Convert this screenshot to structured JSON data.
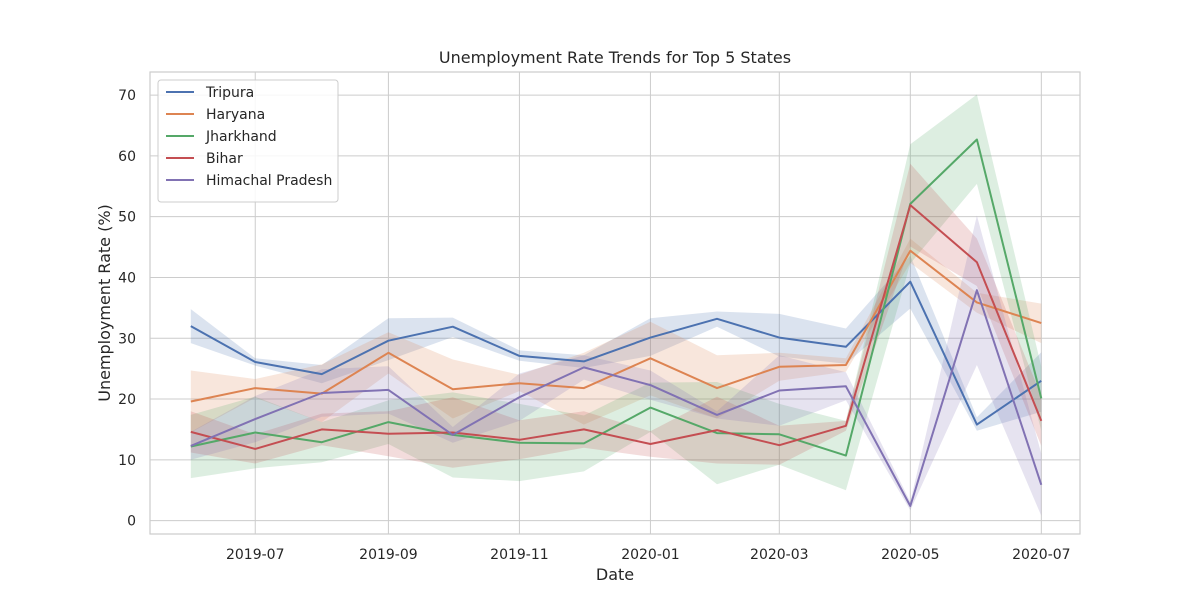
{
  "chart_data": {
    "type": "line",
    "title": "Unemployment Rate Trends for Top 5 States",
    "xlabel": "Date",
    "ylabel": "Unemployment Rate (%)",
    "x": [
      "2019-06",
      "2019-07",
      "2019-08",
      "2019-09",
      "2019-10",
      "2019-11",
      "2019-12",
      "2020-01",
      "2020-02",
      "2020-03",
      "2020-04",
      "2020-05",
      "2020-06",
      "2020-07"
    ],
    "x_tick_labels": [
      "2019-07",
      "2019-09",
      "2019-11",
      "2020-01",
      "2020-03",
      "2020-05",
      "2020-07"
    ],
    "y_ticks": [
      0,
      10,
      20,
      30,
      40,
      50,
      60,
      70
    ],
    "xlim": [
      "2019-05-13",
      "2020-07-19"
    ],
    "ylim": [
      -2.2,
      73.8
    ],
    "grid": true,
    "legend_position": "top-left",
    "shaded_band": "confidence interval",
    "series": [
      {
        "name": "Tripura",
        "color": "#4c72b0",
        "values": [
          32.0,
          26.1,
          24.1,
          29.6,
          31.9,
          27.1,
          26.2,
          30.1,
          33.2,
          30.1,
          28.6,
          39.3,
          15.8,
          23.0
        ],
        "lower": [
          29.2,
          25.5,
          22.6,
          26.4,
          30.2,
          26.3,
          25.1,
          27.1,
          31.9,
          27.0,
          25.8,
          34.9,
          14.8,
          17.9
        ],
        "upper": [
          34.8,
          26.7,
          25.6,
          33.3,
          33.4,
          28.0,
          27.2,
          33.3,
          34.4,
          34.0,
          31.6,
          43.6,
          17.0,
          27.7
        ]
      },
      {
        "name": "Haryana",
        "color": "#dd8452",
        "values": [
          19.6,
          21.8,
          20.9,
          27.6,
          21.6,
          22.6,
          21.8,
          26.7,
          21.8,
          25.3,
          25.6,
          44.4,
          35.9,
          32.5
        ],
        "lower": [
          14.5,
          20.2,
          16.2,
          24.2,
          16.8,
          21.3,
          15.8,
          20.6,
          16.8,
          23.0,
          24.5,
          42.4,
          34.2,
          29.2
        ],
        "upper": [
          24.7,
          23.3,
          25.7,
          31.0,
          26.5,
          24.0,
          27.6,
          32.7,
          27.2,
          27.6,
          26.7,
          46.4,
          37.5,
          35.7
        ]
      },
      {
        "name": "Jharkhand",
        "color": "#55a868",
        "values": [
          12.2,
          14.5,
          12.9,
          16.2,
          14.1,
          12.8,
          12.7,
          18.6,
          14.4,
          14.2,
          10.7,
          52.1,
          62.7,
          20.1
        ],
        "lower": [
          7.0,
          8.6,
          9.6,
          12.6,
          7.1,
          6.5,
          8.1,
          14.6,
          6.0,
          9.2,
          5.0,
          42.3,
          55.4,
          14.8
        ],
        "upper": [
          17.4,
          20.4,
          16.2,
          19.8,
          21.1,
          19.2,
          17.3,
          22.7,
          22.8,
          19.2,
          16.4,
          61.9,
          70.1,
          25.3
        ]
      },
      {
        "name": "Bihar",
        "color": "#c44e52",
        "values": [
          14.6,
          11.8,
          15.0,
          14.3,
          14.5,
          13.3,
          15.0,
          12.6,
          14.9,
          12.4,
          15.6,
          51.9,
          42.5,
          16.4
        ],
        "lower": [
          11.2,
          9.4,
          12.4,
          10.6,
          8.7,
          10.1,
          12.0,
          10.5,
          9.4,
          9.2,
          14.8,
          45.1,
          38.6,
          12.3
        ],
        "upper": [
          18.0,
          14.2,
          17.6,
          18.0,
          20.3,
          16.5,
          18.0,
          14.7,
          20.4,
          15.6,
          16.4,
          58.7,
          46.4,
          20.5
        ]
      },
      {
        "name": "Himachal Pradesh",
        "color": "#8172b3",
        "values": [
          12.3,
          16.7,
          21.0,
          21.5,
          14.1,
          20.3,
          25.2,
          22.3,
          17.4,
          21.4,
          22.1,
          2.4,
          37.9,
          5.9
        ],
        "lower": [
          10.0,
          12.9,
          17.1,
          17.6,
          12.8,
          16.4,
          23.2,
          19.9,
          16.8,
          15.6,
          19.8,
          1.7,
          25.6,
          0.8
        ],
        "upper": [
          14.6,
          20.5,
          24.9,
          25.4,
          15.4,
          24.2,
          27.2,
          24.7,
          18.0,
          27.2,
          24.4,
          3.1,
          50.2,
          11.0
        ]
      }
    ]
  }
}
